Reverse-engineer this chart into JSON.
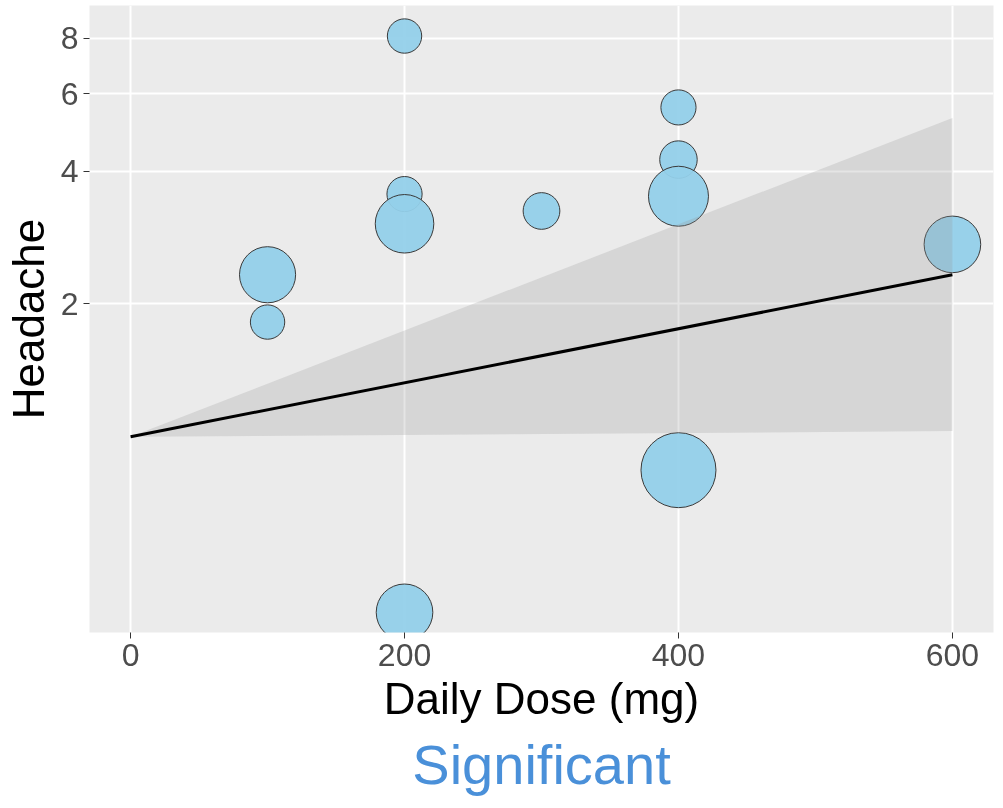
{
  "chart_data": {
    "type": "bubble",
    "xlabel": "Daily Dose (mg)",
    "ylabel": "Headache",
    "log": "y",
    "grid": true,
    "xlim": [
      -30,
      630
    ],
    "xticks": [
      0,
      200,
      400,
      600
    ],
    "ylim": [
      0.36,
      9.5
    ],
    "yticks": [
      2,
      4,
      6,
      8
    ],
    "series": [
      {
        "color": "#93d0ea",
        "x": [
          100,
          100,
          200,
          200,
          200,
          200,
          300,
          400,
          400,
          400,
          400,
          600
        ],
        "values": [
          2.33,
          1.82,
          8.1,
          3.55,
          3.04,
          0.4,
          3.25,
          5.58,
          4.25,
          3.51,
          0.84,
          2.73
        ],
        "sizes": [
          0.56,
          0.21,
          0.21,
          0.22,
          0.61,
          0.57,
          0.24,
          0.22,
          0.25,
          0.64,
          1,
          0.57
        ]
      },
      {
        "type": "line",
        "color": "#000000",
        "x": [
          0,
          600
        ],
        "values": [
          1.0,
          2.33
        ],
        "lower": [
          1.0,
          1.03
        ],
        "upper": [
          1.0,
          5.28
        ]
      }
    ],
    "annotations": [
      "Significant"
    ]
  }
}
